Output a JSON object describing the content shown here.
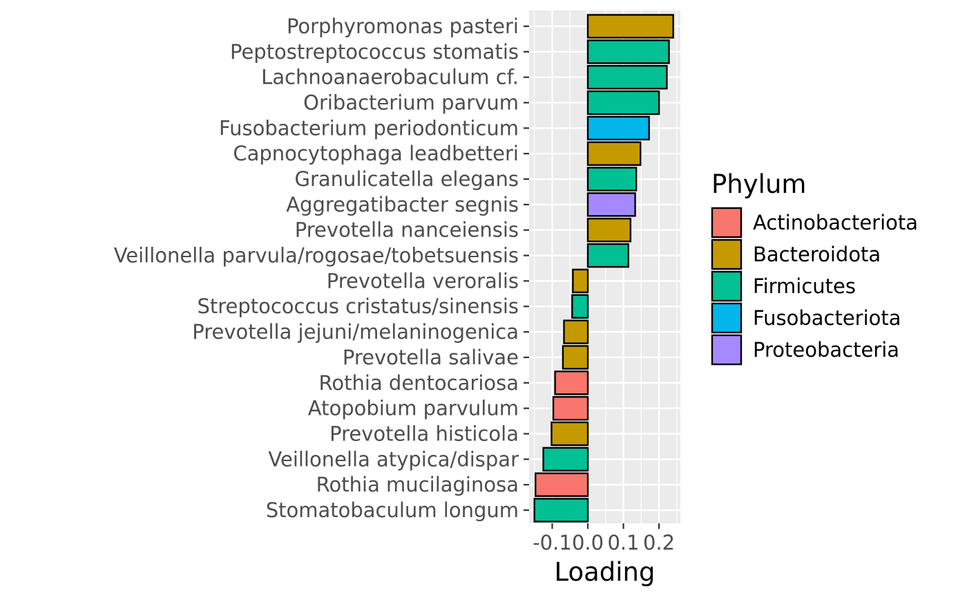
{
  "chart_data": {
    "type": "bar",
    "orientation": "horizontal",
    "xlabel": "Loading",
    "ylabel": "",
    "xlim": [
      -0.165,
      0.26
    ],
    "x_ticks": [
      "-0.1",
      "0.0",
      "0.1",
      "0.2"
    ],
    "x_tick_values": [
      -0.1,
      0.0,
      0.1,
      0.2
    ],
    "grid": true,
    "legend": {
      "title": "Phylum",
      "position": "right",
      "entries": [
        {
          "name": "Actinobacteriota",
          "color": "#F8766D"
        },
        {
          "name": "Bacteroidota",
          "color": "#C49A00"
        },
        {
          "name": "Firmicutes",
          "color": "#00C094"
        },
        {
          "name": "Fusobacteriota",
          "color": "#00B6EB"
        },
        {
          "name": "Proteobacteria",
          "color": "#A58AFF"
        }
      ]
    },
    "bars": [
      {
        "label": "Porphyromonas pasteri",
        "value": 0.24,
        "phylum": "Bacteroidota"
      },
      {
        "label": "Peptostreptococcus stomatis",
        "value": 0.228,
        "phylum": "Firmicutes"
      },
      {
        "label": "Lachnoanaerobaculum cf.",
        "value": 0.222,
        "phylum": "Firmicutes"
      },
      {
        "label": "Oribacterium parvum",
        "value": 0.2,
        "phylum": "Firmicutes"
      },
      {
        "label": "Fusobacterium periodonticum",
        "value": 0.172,
        "phylum": "Fusobacteriota"
      },
      {
        "label": "Capnocytophaga leadbetteri",
        "value": 0.148,
        "phylum": "Bacteroidota"
      },
      {
        "label": "Granulicatella elegans",
        "value": 0.136,
        "phylum": "Firmicutes"
      },
      {
        "label": "Aggregatibacter segnis",
        "value": 0.133,
        "phylum": "Proteobacteria"
      },
      {
        "label": "Prevotella nanceiensis",
        "value": 0.12,
        "phylum": "Bacteroidota"
      },
      {
        "label": "Veillonella parvula/rogosae/tobetsuensis",
        "value": 0.114,
        "phylum": "Firmicutes"
      },
      {
        "label": "Prevotella veroralis",
        "value": -0.042,
        "phylum": "Bacteroidota"
      },
      {
        "label": "Streptococcus cristatus/sinensis",
        "value": -0.044,
        "phylum": "Firmicutes"
      },
      {
        "label": "Prevotella jejuni/melaninogenica",
        "value": -0.067,
        "phylum": "Bacteroidota"
      },
      {
        "label": "Prevotella salivae",
        "value": -0.07,
        "phylum": "Bacteroidota"
      },
      {
        "label": "Rothia dentocariosa",
        "value": -0.092,
        "phylum": "Actinobacteriota"
      },
      {
        "label": "Atopobium parvulum",
        "value": -0.097,
        "phylum": "Actinobacteriota"
      },
      {
        "label": "Prevotella histicola",
        "value": -0.102,
        "phylum": "Bacteroidota"
      },
      {
        "label": "Veillonella atypica/dispar",
        "value": -0.125,
        "phylum": "Firmicutes"
      },
      {
        "label": "Rothia mucilaginosa",
        "value": -0.147,
        "phylum": "Actinobacteriota"
      },
      {
        "label": "Stomatobaculum longum",
        "value": -0.15,
        "phylum": "Firmicutes"
      }
    ]
  }
}
